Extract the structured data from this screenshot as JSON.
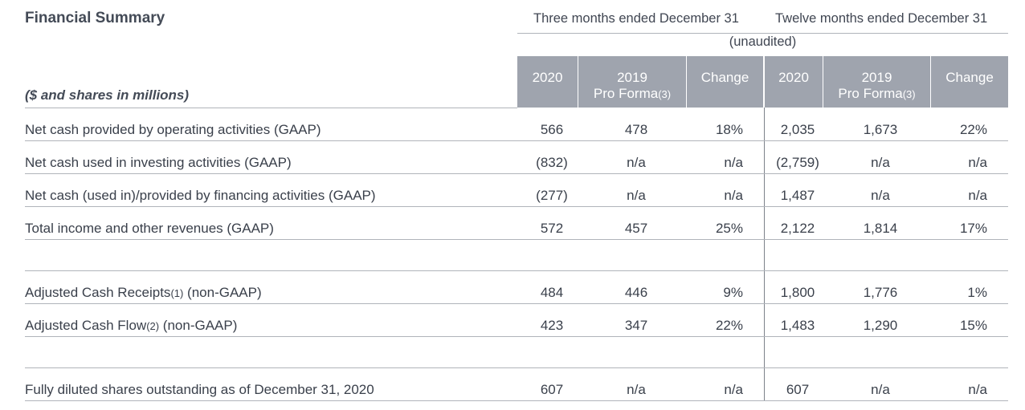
{
  "title": "Financial Summary",
  "units_label": "($ and shares in millions)",
  "period_headers": {
    "three_months": "Three months ended December 31",
    "twelve_months": "Twelve months ended December 31",
    "unaudited": "(unaudited)"
  },
  "columns": [
    {
      "main": "2020",
      "sub": ""
    },
    {
      "main": "2019",
      "sub": "Pro Forma",
      "note": "(3)"
    },
    {
      "main": "Change",
      "sub": ""
    },
    {
      "main": "2020",
      "sub": ""
    },
    {
      "main": "2019",
      "sub": "Pro Forma",
      "note": "(3)"
    },
    {
      "main": "Change",
      "sub": ""
    }
  ],
  "rows": [
    {
      "label": "Net cash provided by operating activities (GAAP)",
      "values": [
        "566",
        "478",
        "18%",
        "2,035",
        "1,673",
        "22%"
      ]
    },
    {
      "label": "Net cash used in investing activities (GAAP)",
      "values": [
        "(832)",
        "n/a",
        "n/a",
        "(2,759)",
        "n/a",
        "n/a"
      ]
    },
    {
      "label": "Net cash (used in)/provided by financing activities (GAAP)",
      "values": [
        "(277)",
        "n/a",
        "n/a",
        "1,487",
        "n/a",
        "n/a"
      ]
    },
    {
      "label": "Total income and other revenues (GAAP)",
      "values": [
        "572",
        "457",
        "25%",
        "2,122",
        "1,814",
        "17%"
      ]
    },
    {
      "label_pre": "Adjusted Cash Receipts",
      "note": "(1)",
      "label_post": " (non-GAAP)",
      "values": [
        "484",
        "446",
        "9%",
        "1,800",
        "1,776",
        "1%"
      ]
    },
    {
      "label_pre": "Adjusted Cash Flow",
      "note": "(2)",
      "label_post": " (non-GAAP)",
      "values": [
        "423",
        "347",
        "22%",
        "1,483",
        "1,290",
        "15%"
      ]
    },
    {
      "label": "Fully diluted shares outstanding as of December 31, 2020",
      "values": [
        "607",
        "n/a",
        "n/a",
        "607",
        "n/a",
        "n/a"
      ]
    }
  ]
}
